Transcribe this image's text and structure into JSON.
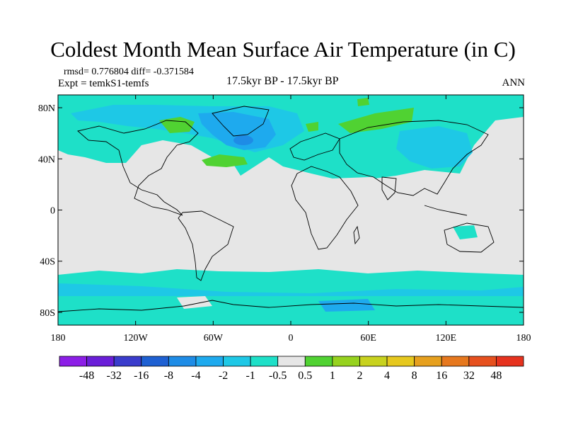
{
  "title": "Coldest Month Mean Surface Air Temperature (in C)",
  "stats": "rmsd= 0.776804 diff= -0.371584",
  "experiment": "Expt = temkS1-temfs",
  "period": "17.5kyr BP - 17.5kyr BP",
  "season": "ANN",
  "map": {
    "lon_range": [
      -180,
      180
    ],
    "lat_range": [
      -90,
      90
    ],
    "background_color": "#e6e6e6",
    "y_ticks": [
      {
        "lat": 80,
        "label": "80N"
      },
      {
        "lat": 40,
        "label": "40N"
      },
      {
        "lat": 0,
        "label": "0"
      },
      {
        "lat": -40,
        "label": "40S"
      },
      {
        "lat": -80,
        "label": "80S"
      }
    ],
    "x_ticks": [
      {
        "lon": -180,
        "label": "180"
      },
      {
        "lon": -120,
        "label": "120W"
      },
      {
        "lon": -60,
        "label": "60W"
      },
      {
        "lon": 0,
        "label": "0"
      },
      {
        "lon": 60,
        "label": "60E"
      },
      {
        "lon": 120,
        "label": "120E"
      },
      {
        "lon": 180,
        "label": "180"
      }
    ]
  },
  "colorbar": {
    "colors": [
      "#8c1ee6",
      "#6a1ed8",
      "#3a3ccc",
      "#1e60d2",
      "#1e8ce6",
      "#1eaaee",
      "#1ec8e6",
      "#1ee0c8",
      "#e6e6e6",
      "#50d232",
      "#96d21e",
      "#c8d21e",
      "#e6c81e",
      "#e6a01e",
      "#e6781e",
      "#e6501e",
      "#e6321e"
    ],
    "labels": [
      "-48",
      "-32",
      "-16",
      "-8",
      "-4",
      "-2",
      "-1",
      "-0.5",
      "0.5",
      "1",
      "2",
      "4",
      "8",
      "16",
      "32",
      "48"
    ]
  }
}
